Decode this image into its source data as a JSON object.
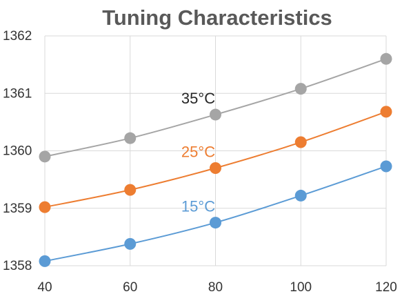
{
  "chart_data": {
    "type": "line",
    "title": "Tuning Characteristics",
    "xlabel": "",
    "ylabel": "",
    "x": [
      40,
      60,
      80,
      100,
      120
    ],
    "xlim": [
      40,
      120
    ],
    "ylim": [
      1358,
      1362
    ],
    "x_ticks": [
      "40",
      "60",
      "80",
      "100",
      "120"
    ],
    "y_ticks": [
      "1358",
      "1359",
      "1360",
      "1361",
      "1362"
    ],
    "grid": true,
    "legend": "none",
    "series": [
      {
        "name": "35°C",
        "color": "#a5a5a5",
        "values": [
          1359.9,
          1360.22,
          1360.63,
          1361.08,
          1361.6
        ]
      },
      {
        "name": "25°C",
        "color": "#ed7d31",
        "values": [
          1359.02,
          1359.32,
          1359.7,
          1360.15,
          1360.68
        ]
      },
      {
        "name": "15°C",
        "color": "#5b9bd5",
        "values": [
          1358.08,
          1358.38,
          1358.75,
          1359.22,
          1359.73
        ]
      }
    ]
  }
}
